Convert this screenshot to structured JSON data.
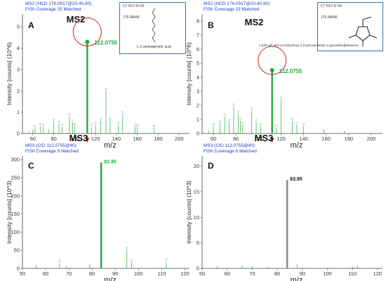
{
  "panels": [
    {
      "id": "A",
      "letter": "A",
      "header_line1": "MS2 (HCD 176,0917@20,40,90)",
      "header_line2": "FISh Coverage 25 Matched",
      "big_label": "MS2",
      "formula": "C7 H13 N O4",
      "mass": "175.08446",
      "compound": "L-2-aminopimelic acid",
      "ylabel": "Intensity  [counts] (10^6)",
      "xlabel": "m/z",
      "peak_label": "112.0755",
      "peak_label_color": "#22aa44",
      "main_color": "#22aa44"
    },
    {
      "id": "B",
      "letter": "B",
      "header_line1": "MS2 (HCD 176,0917@20,40,90)",
      "header_line2": "FISh Coverage 22 Matched",
      "big_label": "MS2",
      "formula": "C7 H13 N O4",
      "mass": "175.08446",
      "compound": "1-[(2R,3R,4R)-3,4-Dihydroxy-2-(hydroxymethyl)-1-pyrrolidinyl]ethanone",
      "ylabel": "Intensity  [counts] (10^6)",
      "xlabel": "m/z",
      "peak_label": "112.0755",
      "peak_label_color": "#22aa44",
      "main_color": "#22aa44"
    },
    {
      "id": "C",
      "letter": "C",
      "header_line1": "MS3 (CID 112,0755@40)",
      "header_line2": "FISh Coverage 9 Matched",
      "big_label": "MS3",
      "ylabel": "Intensity  [counts] (10^3)",
      "xlabel": "m/z",
      "peak_label": "83.95",
      "peak_label_color": "#22aa44",
      "main_color": "#22aa44"
    },
    {
      "id": "D",
      "letter": "D",
      "header_line1": "MS3 (CID 112,0755@40)",
      "header_line2": "FISh Coverage 6 Matched",
      "big_label": "MS3",
      "ylabel": "Intensity  [counts] (10^3)",
      "xlabel": "m/z",
      "peak_label": "83.95",
      "peak_label_color": "#111111",
      "main_color": "#888888"
    }
  ],
  "colors": {
    "arrow": "#d62020",
    "circle": "#d62020",
    "axis": "#444444",
    "minor_peak": "#22aa44"
  },
  "chart_data": [
    {
      "type": "bar",
      "panel": "A",
      "title": "MS2 (HCD 176,0917@20,40,90)",
      "xlabel": "m/z",
      "ylabel": "Intensity  [counts] (10^6)",
      "xlim": [
        50,
        210
      ],
      "ylim": [
        0,
        5.6
      ],
      "xticks": [
        60,
        80,
        100,
        120,
        140,
        160,
        180,
        200
      ],
      "yticks": [
        0,
        1,
        2,
        3,
        4,
        5
      ],
      "x": [
        56.0,
        60.0,
        62.0,
        67.0,
        70.0,
        75.0,
        80.0,
        85.0,
        88.0,
        95.0,
        98.0,
        100.0,
        112.0755,
        116.0,
        120.0,
        125.0,
        130.0,
        134.0,
        142.0,
        146.0,
        158.0,
        160.0,
        176.0
      ],
      "y": [
        0.1,
        0.2,
        0.25,
        0.35,
        0.3,
        0.2,
        0.55,
        0.45,
        0.3,
        0.8,
        0.5,
        0.35,
        4.3,
        0.3,
        0.4,
        0.6,
        2.0,
        0.6,
        0.4,
        0.9,
        0.3,
        0.3,
        0.25
      ]
    },
    {
      "type": "bar",
      "panel": "B",
      "title": "MS2 (HCD 176,0917@20,40,90)",
      "xlabel": "m/z",
      "ylabel": "Intensity  [counts] (10^6)",
      "xlim": [
        50,
        210
      ],
      "ylim": [
        0,
        8.5
      ],
      "xticks": [
        60,
        80,
        100,
        120,
        140,
        160,
        180,
        200
      ],
      "yticks": [
        0,
        1,
        2,
        3,
        4,
        5,
        6,
        7,
        8
      ],
      "x": [
        56.0,
        60.0,
        66.0,
        70.0,
        74.0,
        78.0,
        82.0,
        84.0,
        86.0,
        94.0,
        98.0,
        102.0,
        112.0755,
        116.0,
        120.0,
        130.0,
        134.0,
        140.0,
        158.0,
        176.0
      ],
      "y": [
        0.2,
        0.5,
        0.7,
        1.2,
        0.8,
        1.9,
        1.4,
        0.9,
        0.6,
        1.6,
        0.8,
        0.5,
        4.5,
        0.4,
        2.4,
        0.9,
        0.6,
        0.5,
        0.3,
        0.2
      ]
    },
    {
      "type": "bar",
      "panel": "C",
      "title": "MS3 (CID 112,0755@40)",
      "xlabel": "m/z",
      "ylabel": "Intensity  [counts] (10^3)",
      "xlim": [
        50,
        122
      ],
      "ylim": [
        0,
        310
      ],
      "xticks": [
        50,
        60,
        70,
        80,
        90,
        100,
        110,
        120
      ],
      "yticks": [
        0,
        50,
        100,
        150,
        200,
        250,
        300
      ],
      "x": [
        56.0,
        66.0,
        69.0,
        79.0,
        83.95,
        95.0,
        97.0,
        112.0
      ],
      "y": [
        10,
        15,
        8,
        12,
        292,
        50,
        15,
        18
      ]
    },
    {
      "type": "bar",
      "panel": "D",
      "title": "MS3 (CID 112,0755@40)",
      "xlabel": "m/z",
      "ylabel": "Intensity  [counts] (10^3)",
      "xlim": [
        50,
        122
      ],
      "ylim": [
        0,
        22
      ],
      "xticks": [
        50,
        60,
        70,
        80,
        90,
        100,
        110,
        120
      ],
      "yticks": [
        0,
        5,
        10,
        15,
        20
      ],
      "x": [
        56.0,
        66.0,
        70.0,
        76.0,
        83.95,
        88.0,
        110.0,
        112.0
      ],
      "y": [
        0.5,
        0.6,
        0.4,
        0.3,
        17.3,
        0.8,
        0.4,
        0.5
      ]
    }
  ]
}
